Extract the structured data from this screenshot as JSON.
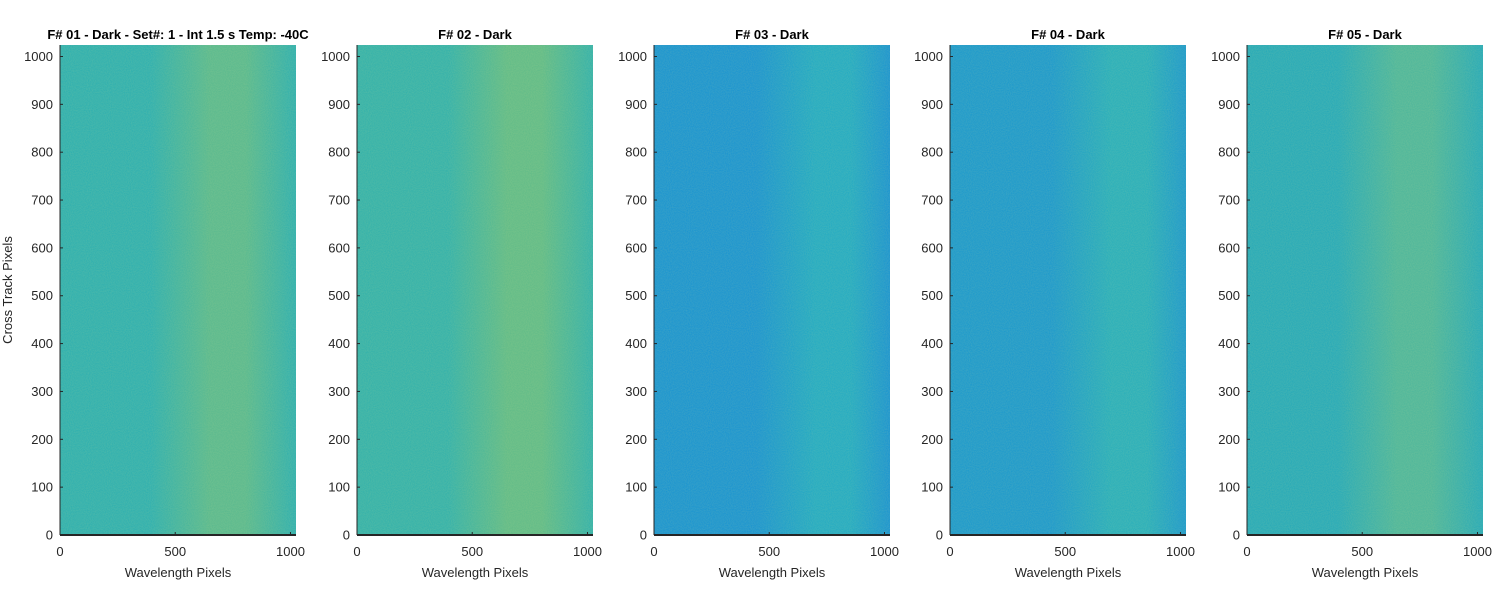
{
  "figure": {
    "ylabel": "Cross Track Pixels"
  },
  "chart_data": [
    {
      "type": "heatmap",
      "title": "F# 01 - Dark - Set#: 1 - Int 1.5 s Temp: -40C",
      "xlabel": "Wavelength Pixels",
      "ylabel": "Cross Track Pixels",
      "xlim": [
        0,
        1024
      ],
      "ylim": [
        0,
        1024
      ],
      "xticks": [
        0,
        500,
        1000
      ],
      "yticks": [
        0,
        100,
        200,
        300,
        400,
        500,
        600,
        700,
        800,
        900,
        1000
      ],
      "colormap": "parula",
      "base_color": "#2aaeb0",
      "peak_color": "#56b88f",
      "peak_x": 650
    },
    {
      "type": "heatmap",
      "title": "F# 02 - Dark",
      "xlabel": "Wavelength Pixels",
      "ylabel": "",
      "xlim": [
        0,
        1024
      ],
      "ylim": [
        0,
        1024
      ],
      "xticks": [
        0,
        500,
        1000
      ],
      "yticks": [
        0,
        100,
        200,
        300,
        400,
        500,
        600,
        700,
        800,
        900,
        1000
      ],
      "colormap": "parula",
      "base_color": "#2fb0ab",
      "peak_color": "#5dba88",
      "peak_x": 650
    },
    {
      "type": "heatmap",
      "title": "F# 03 - Dark",
      "xlabel": "Wavelength Pixels",
      "ylabel": "",
      "xlim": [
        0,
        1024
      ],
      "ylim": [
        0,
        1024
      ],
      "xticks": [
        0,
        500,
        1000
      ],
      "yticks": [
        0,
        100,
        200,
        300,
        400,
        500,
        600,
        700,
        800,
        900,
        1000
      ],
      "colormap": "parula",
      "base_color": "#1592d2",
      "peak_color": "#1ea9c4",
      "peak_x": 700
    },
    {
      "type": "heatmap",
      "title": "F# 04 - Dark",
      "xlabel": "Wavelength Pixels",
      "ylabel": "",
      "xlim": [
        0,
        1024
      ],
      "ylim": [
        0,
        1024
      ],
      "xticks": [
        0,
        500,
        1000
      ],
      "yticks": [
        0,
        100,
        200,
        300,
        400,
        500,
        600,
        700,
        800,
        900,
        1000
      ],
      "colormap": "parula",
      "base_color": "#1797ce",
      "peak_color": "#24adbc",
      "peak_x": 700
    },
    {
      "type": "heatmap",
      "title": "F# 05 - Dark",
      "xlabel": "Wavelength Pixels",
      "ylabel": "",
      "xlim": [
        0,
        1024
      ],
      "ylim": [
        0,
        1024
      ],
      "xticks": [
        0,
        500,
        1000
      ],
      "yticks": [
        0,
        100,
        200,
        300,
        400,
        500,
        600,
        700,
        800,
        900,
        1000
      ],
      "colormap": "parula",
      "base_color": "#22a8b9",
      "peak_color": "#4ab59c",
      "peak_x": 650
    }
  ]
}
